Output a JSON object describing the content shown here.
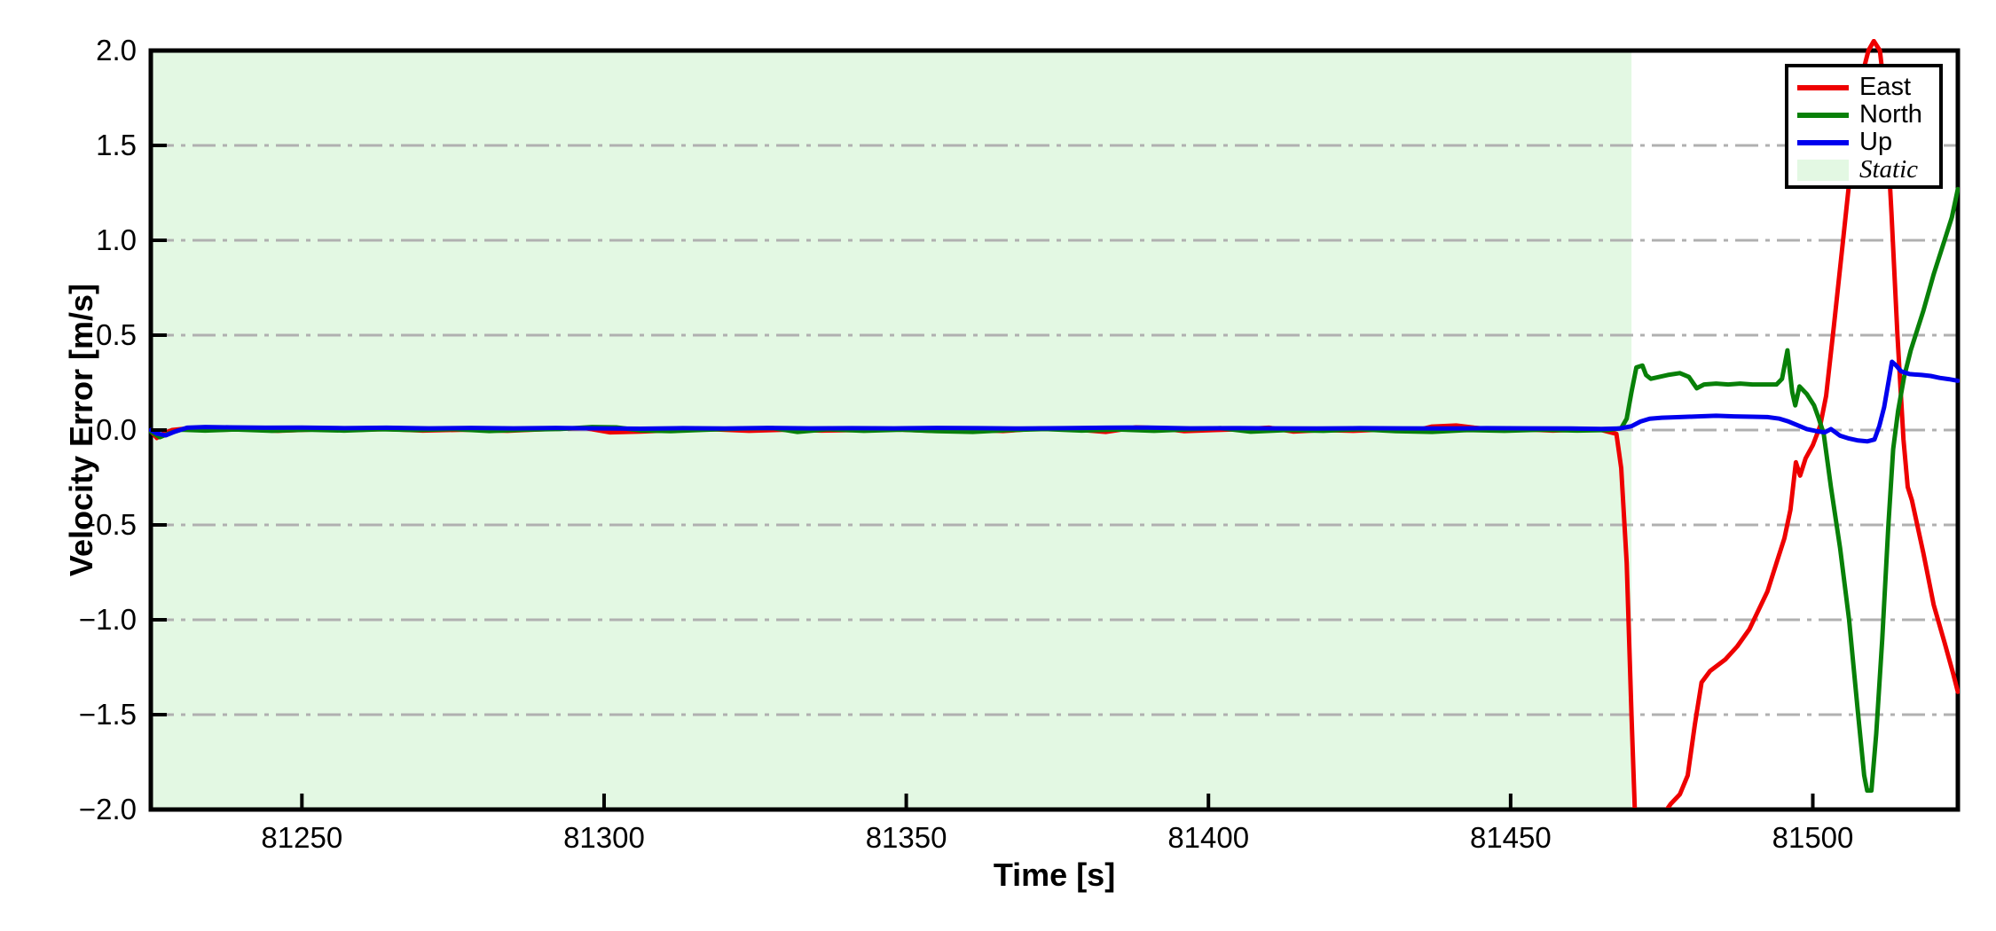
{
  "figure": {
    "xlabel": "Time [s]",
    "ylabel": "Velocity Error [m/s]",
    "background": "#ffffff",
    "frame_color": "#000000"
  },
  "legend": {
    "position": "upper right",
    "items": [
      {
        "label": "East",
        "color": "#ee0000",
        "swatch": "line"
      },
      {
        "label": "North",
        "color": "#088008",
        "swatch": "line"
      },
      {
        "label": "Up",
        "color": "#0000ee",
        "swatch": "line"
      },
      {
        "label": "Static",
        "color": "#e3f8e3",
        "swatch": "patch"
      }
    ]
  },
  "chart_data": {
    "type": "line",
    "title": "",
    "xlabel": "Time [s]",
    "ylabel": "Velocity Error [m/s]",
    "xlim": [
      81225,
      81524
    ],
    "ylim": [
      -2.0,
      2.0
    ],
    "x_ticks": [
      81250,
      81300,
      81350,
      81400,
      81450,
      81500
    ],
    "y_ticks": [
      -2.0,
      -1.5,
      -1.0,
      -0.5,
      0.0,
      0.5,
      1.0,
      1.5,
      2.0
    ],
    "grid": {
      "axis": "y",
      "style": "dash-dot",
      "color": "#b0b0b0"
    },
    "static_region": {
      "start": 81225,
      "end": 81470,
      "color": "#e3f8e3",
      "label": "Static"
    },
    "legend_position": "upper right",
    "series": [
      {
        "name": "East",
        "color": "#ee0000",
        "points": [
          [
            81225,
            -0.005
          ],
          [
            81226,
            -0.042
          ],
          [
            81227,
            -0.02
          ],
          [
            81228.5,
            0
          ],
          [
            81231,
            0.008
          ],
          [
            81235,
            0
          ],
          [
            81240,
            0.004
          ],
          [
            81246,
            -0.004
          ],
          [
            81252,
            0.003
          ],
          [
            81258,
            0
          ],
          [
            81264,
            0.005
          ],
          [
            81270,
            -0.003
          ],
          [
            81277,
            0.002
          ],
          [
            81284,
            -0.004
          ],
          [
            81291,
            0.006
          ],
          [
            81297,
            0.01
          ],
          [
            81301,
            -0.012
          ],
          [
            81306,
            -0.008
          ],
          [
            81312,
            0
          ],
          [
            81318,
            0.004
          ],
          [
            81324,
            -0.004
          ],
          [
            81330,
            0.002
          ],
          [
            81336,
            -0.003
          ],
          [
            81342,
            0
          ],
          [
            81348,
            0.004
          ],
          [
            81354,
            -0.004
          ],
          [
            81360,
            0.002
          ],
          [
            81366,
            -0.005
          ],
          [
            81372,
            0.008
          ],
          [
            81378,
            0.003
          ],
          [
            81383,
            -0.01
          ],
          [
            81388,
            0.014
          ],
          [
            81392,
            0.01
          ],
          [
            81396,
            -0.006
          ],
          [
            81401,
            0
          ],
          [
            81406,
            0.005
          ],
          [
            81410,
            0.012
          ],
          [
            81414,
            -0.008
          ],
          [
            81419,
            0
          ],
          [
            81424,
            -0.004
          ],
          [
            81429,
            0.003
          ],
          [
            81434,
            -0.005
          ],
          [
            81437,
            0.018
          ],
          [
            81441,
            0.024
          ],
          [
            81444,
            0.012
          ],
          [
            81448,
            0
          ],
          [
            81452,
            0.004
          ],
          [
            81457,
            -0.003
          ],
          [
            81461,
            0.002
          ],
          [
            81465,
            0
          ],
          [
            81467.5,
            -0.02
          ],
          [
            81468.3,
            -0.2
          ],
          [
            81469.2,
            -0.7
          ],
          [
            81470,
            -1.5
          ],
          [
            81470.6,
            -2.05
          ],
          [
            81471.3,
            -2.35
          ],
          [
            81473.8,
            -2.35
          ],
          [
            81474.6,
            -2.08
          ],
          [
            81475.4,
            -2.02
          ],
          [
            81476.5,
            -1.97
          ],
          [
            81478,
            -1.92
          ],
          [
            81479.3,
            -1.82
          ],
          [
            81480.5,
            -1.55
          ],
          [
            81481.6,
            -1.33
          ],
          [
            81483,
            -1.27
          ],
          [
            81485.5,
            -1.21
          ],
          [
            81487.5,
            -1.14
          ],
          [
            81489.5,
            -1.05
          ],
          [
            81491,
            -0.95
          ],
          [
            81492.5,
            -0.85
          ],
          [
            81494,
            -0.7
          ],
          [
            81495.3,
            -0.57
          ],
          [
            81496.3,
            -0.42
          ],
          [
            81497.2,
            -0.17
          ],
          [
            81497.9,
            -0.24
          ],
          [
            81498.8,
            -0.15
          ],
          [
            81500,
            -0.08
          ],
          [
            81501.2,
            0.02
          ],
          [
            81502.2,
            0.18
          ],
          [
            81503.5,
            0.55
          ],
          [
            81505,
            1.0
          ],
          [
            81506.5,
            1.45
          ],
          [
            81508,
            1.85
          ],
          [
            81509.2,
            2.0
          ],
          [
            81510.1,
            2.05
          ],
          [
            81511.1,
            2.0
          ],
          [
            81512,
            1.75
          ],
          [
            81513,
            1.15
          ],
          [
            81514,
            0.5
          ],
          [
            81515,
            -0.05
          ],
          [
            81515.7,
            -0.3
          ],
          [
            81516.4,
            -0.37
          ],
          [
            81518.3,
            -0.65
          ],
          [
            81520,
            -0.92
          ],
          [
            81521.8,
            -1.12
          ],
          [
            81523.2,
            -1.28
          ],
          [
            81524,
            -1.38
          ]
        ]
      },
      {
        "name": "North",
        "color": "#088008",
        "points": [
          [
            81225,
            -0.008
          ],
          [
            81226.5,
            -0.038
          ],
          [
            81228,
            -0.018
          ],
          [
            81230,
            0.002
          ],
          [
            81234,
            -0.003
          ],
          [
            81239,
            0.003
          ],
          [
            81245,
            -0.004
          ],
          [
            81251,
            0.002
          ],
          [
            81257,
            -0.003
          ],
          [
            81263,
            0.004
          ],
          [
            81269,
            0
          ],
          [
            81275,
            0.005
          ],
          [
            81281,
            -0.005
          ],
          [
            81287,
            0.002
          ],
          [
            81293,
            0.006
          ],
          [
            81298,
            0.016
          ],
          [
            81302,
            0.014
          ],
          [
            81306,
            -0.002
          ],
          [
            81311,
            -0.006
          ],
          [
            81317,
            0.002
          ],
          [
            81323,
            0.008
          ],
          [
            81328,
            0.01
          ],
          [
            81332,
            -0.01
          ],
          [
            81337,
            0.004
          ],
          [
            81343,
            -0.004
          ],
          [
            81349,
            0.002
          ],
          [
            81355,
            -0.006
          ],
          [
            81361,
            -0.01
          ],
          [
            81367,
            0
          ],
          [
            81373,
            0.005
          ],
          [
            81379,
            -0.003
          ],
          [
            81385,
            0.003
          ],
          [
            81391,
            -0.004
          ],
          [
            81397,
            0.004
          ],
          [
            81402,
            0.01
          ],
          [
            81407,
            -0.009
          ],
          [
            81413,
            0
          ],
          [
            81419,
            -0.004
          ],
          [
            81425,
            0.004
          ],
          [
            81431,
            -0.006
          ],
          [
            81437,
            -0.01
          ],
          [
            81443,
            0
          ],
          [
            81449,
            -0.004
          ],
          [
            81455,
            0.002
          ],
          [
            81461,
            -0.003
          ],
          [
            81466,
            0
          ],
          [
            81468.3,
            0.01
          ],
          [
            81469.2,
            0.06
          ],
          [
            81470,
            0.2
          ],
          [
            81470.8,
            0.33
          ],
          [
            81471.8,
            0.34
          ],
          [
            81472.4,
            0.29
          ],
          [
            81473.2,
            0.27
          ],
          [
            81476,
            0.29
          ],
          [
            81478,
            0.3
          ],
          [
            81479.5,
            0.28
          ],
          [
            81480.8,
            0.22
          ],
          [
            81482,
            0.24
          ],
          [
            81484,
            0.245
          ],
          [
            81486,
            0.24
          ],
          [
            81488,
            0.245
          ],
          [
            81490,
            0.24
          ],
          [
            81492,
            0.24
          ],
          [
            81494,
            0.24
          ],
          [
            81494.9,
            0.27
          ],
          [
            81495.8,
            0.42
          ],
          [
            81496.6,
            0.2
          ],
          [
            81497.1,
            0.13
          ],
          [
            81497.8,
            0.23
          ],
          [
            81499,
            0.19
          ],
          [
            81500.2,
            0.13
          ],
          [
            81501,
            0.06
          ],
          [
            81501.8,
            -0.02
          ],
          [
            81503,
            -0.3
          ],
          [
            81504.5,
            -0.62
          ],
          [
            81506,
            -1.0
          ],
          [
            81507.5,
            -1.5
          ],
          [
            81508.5,
            -1.82
          ],
          [
            81509,
            -1.9
          ],
          [
            81509.7,
            -1.9
          ],
          [
            81510.5,
            -1.6
          ],
          [
            81511.5,
            -1.1
          ],
          [
            81512.5,
            -0.5
          ],
          [
            81513.3,
            -0.1
          ],
          [
            81514.1,
            0.1
          ],
          [
            81515.1,
            0.28
          ],
          [
            81516.2,
            0.42
          ],
          [
            81518.3,
            0.63
          ],
          [
            81520,
            0.82
          ],
          [
            81521.8,
            1.0
          ],
          [
            81523,
            1.12
          ],
          [
            81524,
            1.27
          ]
        ]
      },
      {
        "name": "Up",
        "color": "#0000ee",
        "points": [
          [
            81225,
            0
          ],
          [
            81226,
            -0.018
          ],
          [
            81227.5,
            -0.028
          ],
          [
            81229,
            -0.008
          ],
          [
            81231,
            0.012
          ],
          [
            81234,
            0.016
          ],
          [
            81238,
            0.014
          ],
          [
            81244,
            0.012
          ],
          [
            81250,
            0.013
          ],
          [
            81257,
            0.01
          ],
          [
            81264,
            0.012
          ],
          [
            81271,
            0.009
          ],
          [
            81278,
            0.011
          ],
          [
            81285,
            0.009
          ],
          [
            81292,
            0.011
          ],
          [
            81299,
            0.009
          ],
          [
            81306,
            0.007
          ],
          [
            81313,
            0.01
          ],
          [
            81320,
            0.008
          ],
          [
            81327,
            0.011
          ],
          [
            81334,
            0.009
          ],
          [
            81341,
            0.01
          ],
          [
            81348,
            0.009
          ],
          [
            81355,
            0.011
          ],
          [
            81362,
            0.01
          ],
          [
            81369,
            0.008
          ],
          [
            81376,
            0.01
          ],
          [
            81383,
            0.012
          ],
          [
            81390,
            0.013
          ],
          [
            81397,
            0.009
          ],
          [
            81404,
            0.01
          ],
          [
            81411,
            0.009
          ],
          [
            81418,
            0.008
          ],
          [
            81425,
            0.01
          ],
          [
            81432,
            0.009
          ],
          [
            81439,
            0.008
          ],
          [
            81446,
            0.01
          ],
          [
            81453,
            0.009
          ],
          [
            81460,
            0.008
          ],
          [
            81465,
            0.006
          ],
          [
            81468,
            0.008
          ],
          [
            81470,
            0.02
          ],
          [
            81471.5,
            0.045
          ],
          [
            81473,
            0.06
          ],
          [
            81475,
            0.065
          ],
          [
            81478,
            0.068
          ],
          [
            81481,
            0.072
          ],
          [
            81484,
            0.075
          ],
          [
            81487,
            0.072
          ],
          [
            81490,
            0.07
          ],
          [
            81492.5,
            0.068
          ],
          [
            81494.5,
            0.06
          ],
          [
            81496,
            0.045
          ],
          [
            81497.5,
            0.025
          ],
          [
            81499,
            0.005
          ],
          [
            81500.5,
            -0.005
          ],
          [
            81502,
            -0.012
          ],
          [
            81503,
            0.005
          ],
          [
            81504.5,
            -0.03
          ],
          [
            81506,
            -0.045
          ],
          [
            81507.5,
            -0.055
          ],
          [
            81509,
            -0.06
          ],
          [
            81510.2,
            -0.05
          ],
          [
            81511,
            0.02
          ],
          [
            81511.8,
            0.12
          ],
          [
            81512.5,
            0.25
          ],
          [
            81513.1,
            0.36
          ],
          [
            81513.8,
            0.34
          ],
          [
            81514.6,
            0.31
          ],
          [
            81516,
            0.295
          ],
          [
            81518,
            0.29
          ],
          [
            81519.5,
            0.285
          ],
          [
            81521,
            0.275
          ],
          [
            81522.5,
            0.268
          ],
          [
            81524,
            0.26
          ]
        ]
      }
    ]
  }
}
